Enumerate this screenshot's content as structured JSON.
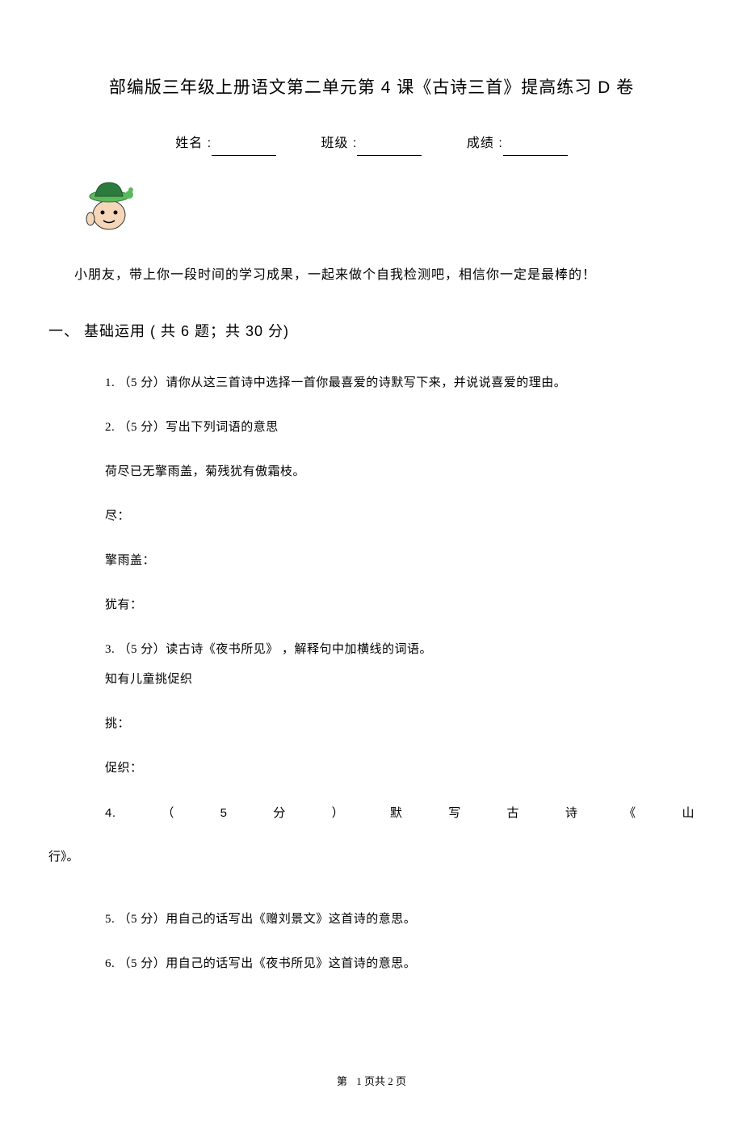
{
  "title": "部编版三年级上册语文第二单元第 4 课《古诗三首》提高练习 D 卷",
  "info": {
    "name_label": "姓名 :",
    "class_label": "班级 :",
    "score_label": "成绩 :"
  },
  "intro": "小朋友，带上你一段时间的学习成果，一起来做个自我检测吧，相信你一定是最棒的！",
  "section1": {
    "heading": "一、  基础运用 ( 共 6 题；共 30 分)"
  },
  "q1": {
    "text": "1.   （5 分）请你从这三首诗中选择一首你最喜爱的诗默写下来，并说说喜爱的理由。"
  },
  "q2": {
    "text": "2.   （5 分）写出下列词语的意思",
    "poem": "荷尽已无擎雨盖，菊残犹有傲霜枝。",
    "w1": "尽：",
    "w2": "擎雨盖：",
    "w3": "犹有："
  },
  "q3": {
    "text": "3.   （5 分）读古诗《夜书所见》 ，解释句中加横线的词语。",
    "poem": "知有儿童挑促织",
    "w1": "挑：",
    "w2": "促织："
  },
  "q4": {
    "chars": [
      "4.",
      "（",
      "5",
      "分",
      "）",
      "默",
      "写",
      "古",
      "诗",
      "《",
      "山"
    ],
    "tail": "行》。"
  },
  "q5": {
    "text": "5.   （5 分）用自己的话写出《赠刘景文》这首诗的意思。"
  },
  "q6": {
    "text": "6.   （5 分）用自己的话写出《夜书所见》这首诗的意思。"
  },
  "footer": {
    "prefix": "第",
    "nums": "1 页共 2 页"
  },
  "colors": {
    "text": "#000000",
    "background": "#ffffff",
    "mascot_hat": "#2d7a3e",
    "mascot_face": "#f5d6b8",
    "mascot_brim": "#5cb85c"
  }
}
